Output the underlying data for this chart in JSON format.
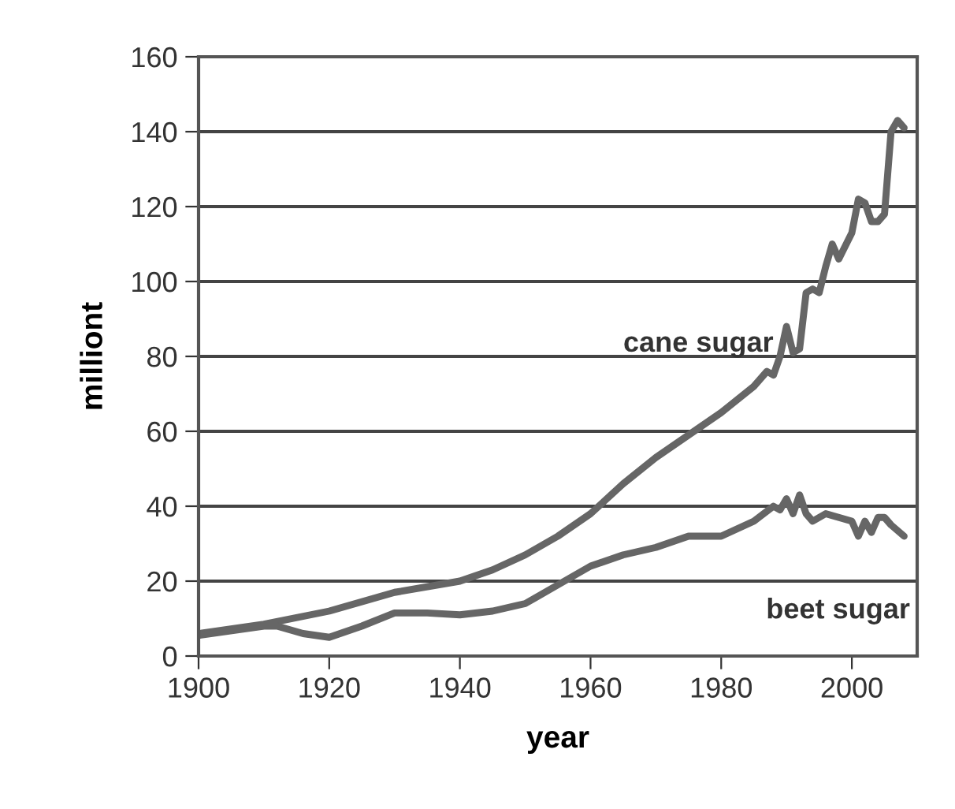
{
  "chart_data": {
    "type": "line",
    "xlabel": "year",
    "ylabel": "milliont",
    "xlim": [
      1900,
      2010
    ],
    "xticks": [
      1900,
      1920,
      1940,
      1960,
      1980,
      2000
    ],
    "ylim": [
      0,
      160
    ],
    "yticks": [
      0,
      20,
      40,
      60,
      80,
      100,
      120,
      140,
      160
    ],
    "grid": "y",
    "legend": false,
    "marker": "none",
    "line_style": "solid",
    "series": [
      {
        "name": "cane sugar",
        "color": "#666666",
        "x": [
          1900,
          1910,
          1920,
          1930,
          1940,
          1945,
          1950,
          1955,
          1960,
          1965,
          1970,
          1975,
          1980,
          1985,
          1987,
          1988,
          1989,
          1990,
          1991,
          1992,
          1993,
          1994,
          1995,
          1996,
          1997,
          1998,
          2000,
          2001,
          2002,
          2003,
          2004,
          2005,
          2006,
          2007,
          2008
        ],
        "values": [
          6,
          8.5,
          12,
          17,
          20,
          23,
          27,
          32,
          38,
          46,
          53,
          59,
          65,
          72,
          76,
          75,
          80,
          88,
          81,
          82,
          97,
          98,
          97,
          104,
          110,
          106,
          113,
          122,
          121,
          116,
          116,
          118,
          140,
          143,
          141
        ]
      },
      {
        "name": "beet sugar",
        "color": "#666666",
        "x": [
          1900,
          1910,
          1912,
          1916,
          1920,
          1925,
          1930,
          1935,
          1940,
          1945,
          1950,
          1955,
          1960,
          1965,
          1970,
          1975,
          1980,
          1985,
          1988,
          1989,
          1990,
          1991,
          1992,
          1993,
          1994,
          1996,
          1998,
          2000,
          2001,
          2002,
          2003,
          2004,
          2005,
          2006,
          2008
        ],
        "values": [
          5.5,
          8,
          8,
          6,
          5,
          8,
          11.5,
          11.5,
          11,
          12,
          14,
          19,
          24,
          27,
          29,
          32,
          32,
          36,
          40,
          39,
          42,
          38,
          43,
          38,
          36,
          38,
          37,
          36,
          32,
          36,
          33,
          37,
          37,
          35,
          32
        ]
      }
    ]
  }
}
